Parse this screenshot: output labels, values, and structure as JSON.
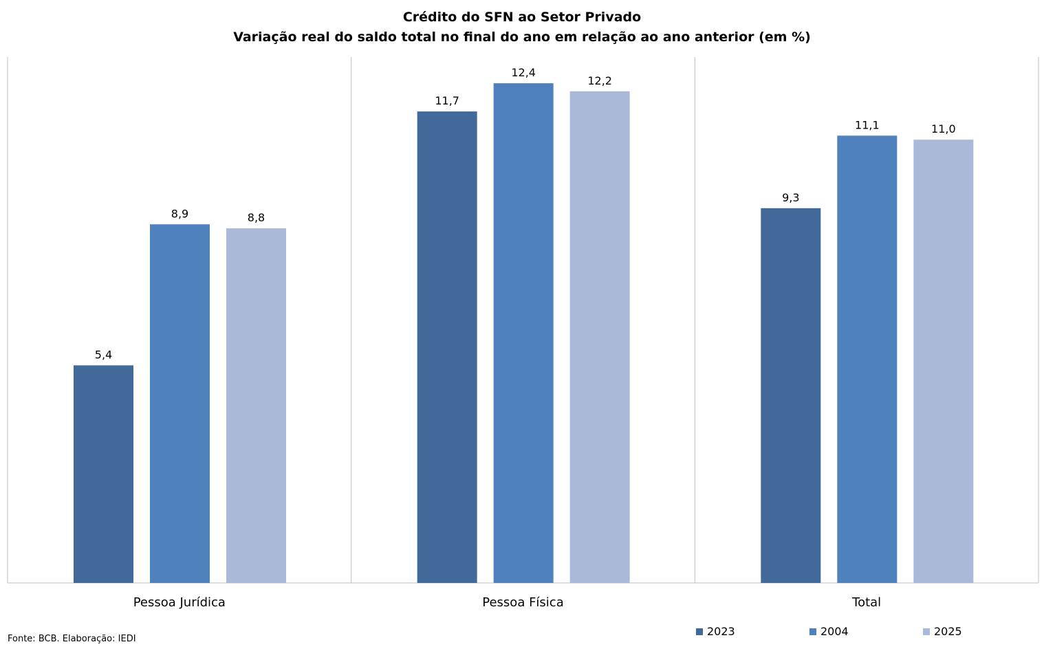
{
  "chart_data": {
    "type": "bar",
    "title": "Crédito do SFN ao Setor Privado",
    "subtitle": "Variação real do saldo total no final do ano em relação ao ano anterior (em %)",
    "categories": [
      "Pessoa Jurídica",
      "Pessoa Física",
      "Total"
    ],
    "series": [
      {
        "name": "2023",
        "color": "#416A9B",
        "values": [
          5.4,
          11.7,
          9.3
        ],
        "labels": [
          "5,4",
          "11,7",
          "9,3"
        ]
      },
      {
        "name": "2004",
        "color": "#4F81BD",
        "values": [
          8.9,
          12.4,
          11.1
        ],
        "labels": [
          "8,9",
          "12,4",
          "11,1"
        ]
      },
      {
        "name": "2025",
        "color": "#AAB9D7",
        "values": [
          8.8,
          12.2,
          11.0
        ],
        "labels": [
          "8,8",
          "12,2",
          "11,0"
        ]
      }
    ],
    "xlabel": "",
    "ylabel": "",
    "ylim": [
      0,
      13.05
    ],
    "grid": false,
    "legend": "bottom-right"
  },
  "source": "Fonte: BCB. Elaboração: IEDI"
}
